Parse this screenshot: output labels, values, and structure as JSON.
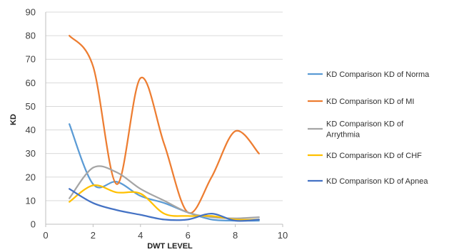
{
  "chart_data": {
    "type": "line",
    "title": "",
    "xlabel": "DWT LEVEL",
    "ylabel": "KD",
    "xlim": [
      0,
      10
    ],
    "ylim": [
      0,
      90
    ],
    "xticks": [
      "0",
      "2",
      "4",
      "6",
      "8",
      "10"
    ],
    "yticks": [
      "0",
      "10",
      "20",
      "30",
      "40",
      "50",
      "60",
      "70",
      "80",
      "90"
    ],
    "grid": "horizontal",
    "legend_position": "right",
    "x": [
      1,
      2,
      3,
      4,
      5,
      6,
      7,
      8,
      9
    ],
    "series": [
      {
        "name": "KD Comparison  KD of Norma",
        "legend_lines": [
          "KD Comparison  KD of Norma"
        ],
        "color": "#5b9bd5",
        "values": [
          42.5,
          17,
          18,
          12,
          9,
          5,
          2,
          1.5,
          1.5
        ]
      },
      {
        "name": "KD Comparison KD  of MI",
        "legend_lines": [
          "KD Comparison KD  of MI"
        ],
        "color": "#ed7d31",
        "values": [
          80,
          67,
          17,
          62,
          34,
          5,
          20,
          39.5,
          30
        ]
      },
      {
        "name": "KD Comparison KD of Arrythmia",
        "legend_lines": [
          "KD Comparison KD of",
          "Arrythmia"
        ],
        "color": "#a5a5a5",
        "values": [
          11,
          24,
          22,
          15,
          10,
          5,
          3,
          2.5,
          3
        ]
      },
      {
        "name": "KD Comparison KD of CHF",
        "legend_lines": [
          "KD Comparison KD of CHF"
        ],
        "color": "#ffc000",
        "values": [
          9.5,
          16.5,
          13.5,
          13,
          4.5,
          3.5,
          3.5,
          2,
          2
        ]
      },
      {
        "name": "KD Comparison KD of Apnea",
        "legend_lines": [
          "KD Comparison KD of Apnea"
        ],
        "color": "#4472c4",
        "values": [
          15,
          9,
          6,
          4,
          2,
          2,
          4.5,
          1.5,
          2
        ]
      }
    ]
  }
}
